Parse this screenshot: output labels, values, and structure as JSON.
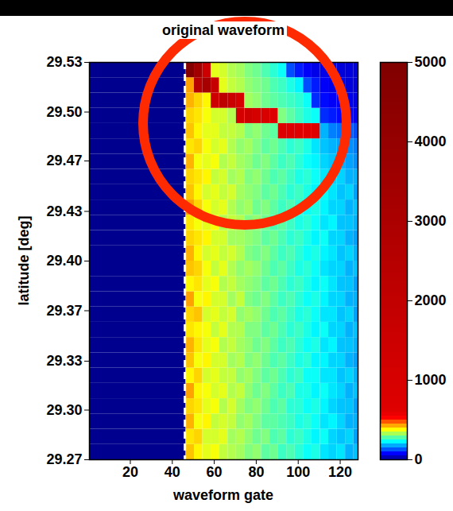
{
  "chart_data": {
    "type": "heatmap",
    "title": "original waveform",
    "x_label": "waveform gate",
    "y_label": "latitude [deg]",
    "xlim": [
      0.5,
      128.5
    ],
    "ylim": [
      29.27,
      29.53
    ],
    "xticks": [
      20,
      40,
      60,
      80,
      100,
      120
    ],
    "yticks": [
      {
        "value": 29.27,
        "label": "29.27"
      },
      {
        "value": 29.3025,
        "label": "29.30"
      },
      {
        "value": 29.3345,
        "label": "29.33"
      },
      {
        "value": 29.3675,
        "label": "29.37"
      },
      {
        "value": 29.4,
        "label": "29.40"
      },
      {
        "value": 29.4325,
        "label": "29.43"
      },
      {
        "value": 29.4655,
        "label": "29.47"
      },
      {
        "value": 29.4975,
        "label": "29.50"
      },
      {
        "value": 29.53,
        "label": "29.53"
      }
    ],
    "colorbar": {
      "lim": [
        0,
        5000
      ],
      "ticks": [
        0,
        1000,
        2000,
        3000,
        4000,
        5000
      ]
    },
    "reference_gate": 46,
    "x_edges": [
      0.5,
      46.5,
      50.5,
      54.5,
      58.5,
      62.5,
      66.5,
      70.5,
      74.5,
      78.5,
      82.5,
      86.5,
      90.5,
      94.5,
      98.5,
      102.5,
      106.5,
      110.5,
      114.5,
      118.5,
      122.5,
      126.5,
      128.5
    ],
    "y_edges": [
      29.27,
      29.28,
      29.29,
      29.3,
      29.31,
      29.32,
      29.33,
      29.34,
      29.35,
      29.36,
      29.37,
      29.38,
      29.39,
      29.4,
      29.41,
      29.42,
      29.43,
      29.44,
      29.45,
      29.46,
      29.47,
      29.48,
      29.49,
      29.5,
      29.51,
      29.52,
      29.53
    ],
    "values": [
      [
        0,
        410,
        380,
        360,
        370,
        340,
        330,
        320,
        300,
        310,
        280,
        290,
        260,
        270,
        250,
        230,
        240,
        210,
        200,
        210,
        180,
        190
      ],
      [
        0,
        390,
        400,
        350,
        350,
        360,
        320,
        330,
        310,
        290,
        300,
        270,
        280,
        250,
        260,
        240,
        220,
        230,
        200,
        190,
        200,
        170
      ],
      [
        0,
        420,
        370,
        380,
        340,
        350,
        340,
        310,
        320,
        300,
        280,
        280,
        270,
        260,
        240,
        250,
        230,
        210,
        220,
        200,
        180,
        180
      ],
      [
        0,
        400,
        390,
        360,
        370,
        330,
        350,
        320,
        300,
        310,
        290,
        270,
        280,
        250,
        250,
        230,
        240,
        220,
        200,
        190,
        190,
        170
      ],
      [
        0,
        430,
        380,
        370,
        350,
        360,
        330,
        340,
        310,
        290,
        300,
        280,
        260,
        270,
        240,
        240,
        220,
        230,
        210,
        200,
        180,
        190
      ],
      [
        0,
        380,
        400,
        350,
        360,
        340,
        340,
        310,
        320,
        300,
        280,
        290,
        270,
        250,
        260,
        230,
        230,
        210,
        210,
        190,
        200,
        180
      ],
      [
        0,
        410,
        370,
        380,
        350,
        350,
        320,
        330,
        300,
        310,
        290,
        270,
        280,
        260,
        240,
        250,
        220,
        220,
        200,
        200,
        180,
        170
      ],
      [
        0,
        420,
        390,
        360,
        370,
        330,
        340,
        320,
        310,
        290,
        300,
        280,
        260,
        270,
        250,
        230,
        240,
        210,
        220,
        190,
        190,
        180
      ],
      [
        0,
        390,
        380,
        370,
        340,
        360,
        330,
        330,
        300,
        300,
        280,
        290,
        270,
        250,
        260,
        240,
        220,
        230,
        200,
        200,
        180,
        190
      ],
      [
        0,
        400,
        410,
        350,
        360,
        340,
        350,
        310,
        320,
        310,
        290,
        270,
        280,
        260,
        240,
        250,
        230,
        210,
        210,
        190,
        200,
        170
      ],
      [
        0,
        430,
        370,
        380,
        350,
        350,
        320,
        340,
        300,
        290,
        300,
        280,
        260,
        270,
        250,
        230,
        240,
        220,
        200,
        200,
        180,
        180
      ],
      [
        0,
        380,
        390,
        360,
        370,
        330,
        340,
        320,
        310,
        300,
        280,
        290,
        270,
        250,
        260,
        240,
        220,
        230,
        210,
        190,
        190,
        170
      ],
      [
        0,
        410,
        400,
        370,
        340,
        360,
        330,
        310,
        320,
        310,
        290,
        270,
        280,
        260,
        240,
        250,
        230,
        210,
        200,
        200,
        180,
        190
      ],
      [
        0,
        420,
        380,
        350,
        360,
        340,
        350,
        330,
        300,
        290,
        300,
        280,
        260,
        270,
        250,
        230,
        240,
        220,
        210,
        190,
        200,
        180
      ],
      [
        0,
        400,
        390,
        380,
        350,
        350,
        320,
        320,
        310,
        300,
        280,
        290,
        270,
        250,
        260,
        240,
        220,
        230,
        200,
        200,
        180,
        170
      ],
      [
        0,
        390,
        370,
        360,
        370,
        330,
        340,
        330,
        300,
        310,
        290,
        270,
        280,
        260,
        240,
        250,
        230,
        210,
        220,
        190,
        190,
        180
      ],
      [
        0,
        430,
        400,
        370,
        350,
        360,
        330,
        310,
        320,
        290,
        300,
        280,
        260,
        270,
        250,
        230,
        240,
        220,
        200,
        200,
        180,
        190
      ],
      [
        0,
        410,
        380,
        350,
        360,
        340,
        350,
        320,
        310,
        300,
        280,
        290,
        270,
        250,
        260,
        240,
        220,
        230,
        210,
        190,
        200,
        170
      ],
      [
        0,
        400,
        390,
        380,
        340,
        350,
        320,
        330,
        300,
        310,
        290,
        270,
        280,
        260,
        240,
        250,
        230,
        210,
        200,
        200,
        180,
        180
      ],
      [
        0,
        420,
        370,
        360,
        370,
        330,
        340,
        320,
        310,
        290,
        300,
        280,
        260,
        270,
        250,
        230,
        220,
        200,
        190,
        180,
        170,
        160
      ],
      [
        0,
        390,
        400,
        370,
        350,
        360,
        330,
        310,
        320,
        300,
        280,
        290,
        270,
        250,
        260,
        240,
        210,
        190,
        180,
        170,
        160,
        150
      ],
      [
        0,
        410,
        380,
        360,
        360,
        340,
        340,
        330,
        300,
        310,
        290,
        280,
        800,
        700,
        650,
        600,
        700,
        180,
        150,
        140,
        130,
        120
      ],
      [
        0,
        400,
        390,
        370,
        350,
        350,
        330,
        1200,
        1400,
        1100,
        900,
        700,
        300,
        280,
        260,
        240,
        230,
        100,
        90,
        80,
        70,
        70
      ],
      [
        0,
        420,
        400,
        380,
        1500,
        2200,
        1600,
        1000,
        320,
        310,
        290,
        280,
        270,
        260,
        250,
        230,
        100,
        80,
        70,
        70,
        60,
        60
      ],
      [
        0,
        430,
        2500,
        3200,
        1800,
        360,
        340,
        330,
        310,
        300,
        290,
        270,
        260,
        240,
        220,
        120,
        90,
        70,
        60,
        60,
        50,
        50
      ],
      [
        0,
        4800,
        3500,
        1500,
        360,
        350,
        330,
        320,
        300,
        290,
        270,
        250,
        230,
        120,
        90,
        70,
        60,
        60,
        50,
        50,
        50,
        50
      ]
    ]
  }
}
